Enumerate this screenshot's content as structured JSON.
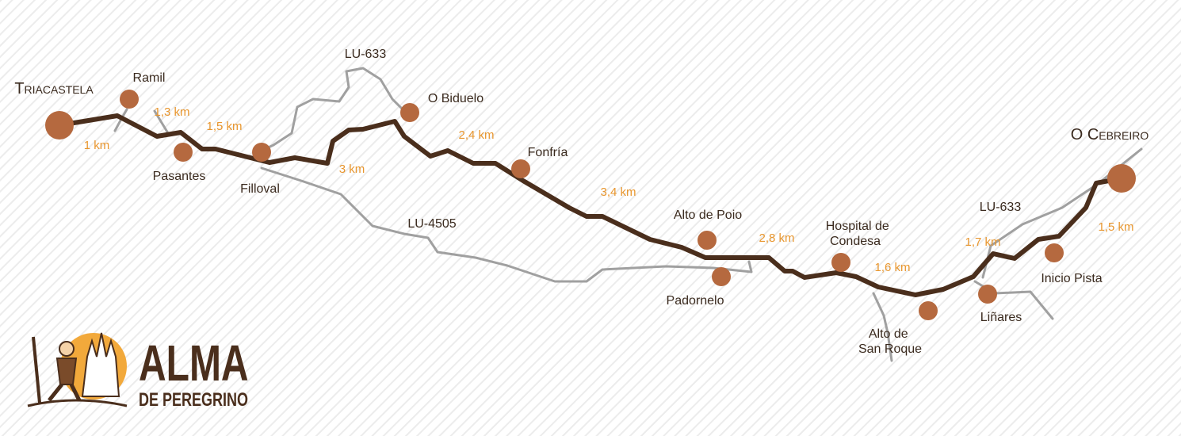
{
  "places": [
    {
      "label": [
        "Triacastela"
      ]
    },
    {
      "label": [
        "Ramil"
      ]
    },
    {
      "label": [
        "Pasantes"
      ]
    },
    {
      "label": [
        "Filloval"
      ]
    },
    {
      "label": [
        "O Biduelo"
      ]
    },
    {
      "label": [
        "Fonfría"
      ]
    },
    {
      "label": [
        "Alto de Poio"
      ]
    },
    {
      "label": [
        "Padornelo"
      ]
    },
    {
      "label": [
        "Hospital de",
        "Condesa"
      ]
    },
    {
      "label": [
        "Alto de",
        "San Roque"
      ]
    },
    {
      "label": [
        "Liñares"
      ]
    },
    {
      "label": [
        "Inicio Pista"
      ]
    },
    {
      "label": [
        "O Cebreiro"
      ]
    }
  ],
  "distances": [
    "1 km",
    "1,3 km",
    "1,5 km",
    "3 km",
    "2,4 km",
    "3,4 km",
    "2,8 km",
    "1,6 km",
    "1,7 km",
    "1,5 km"
  ],
  "roads": [
    "LU-633",
    "LU-4505",
    "LU-633"
  ],
  "logo": {
    "title": "ALMA",
    "subtitle": "DE PEREGRINO"
  }
}
